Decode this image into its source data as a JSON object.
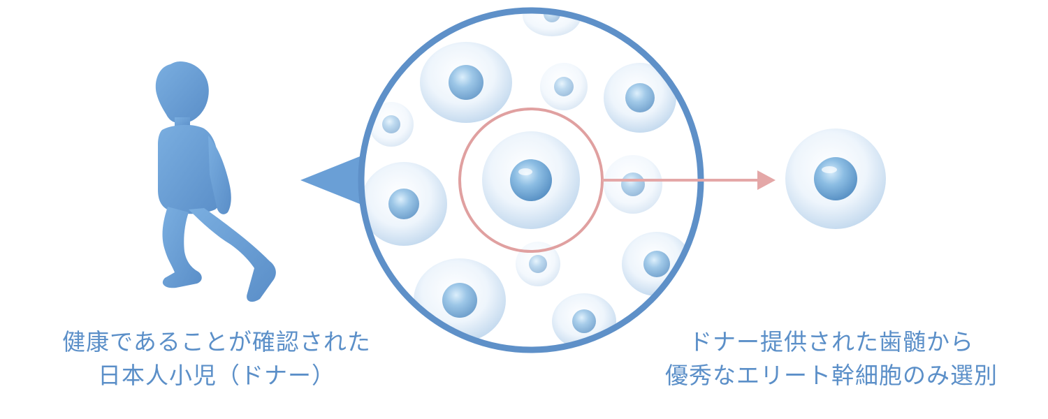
{
  "donor_caption": {
    "line1": "健康であることが確認された",
    "line2": "日本人小児（ドナー）"
  },
  "selected_caption": {
    "line1": "ドナー提供された歯髄から",
    "line2": "優秀なエリート幹細胞のみ選別"
  },
  "colors": {
    "silhouette": "#6a9fd6",
    "ring": "#5e90c8",
    "text": "#5b8fc8",
    "highlight": "#e0a0a0",
    "nucleus": "#7fb2dc"
  }
}
